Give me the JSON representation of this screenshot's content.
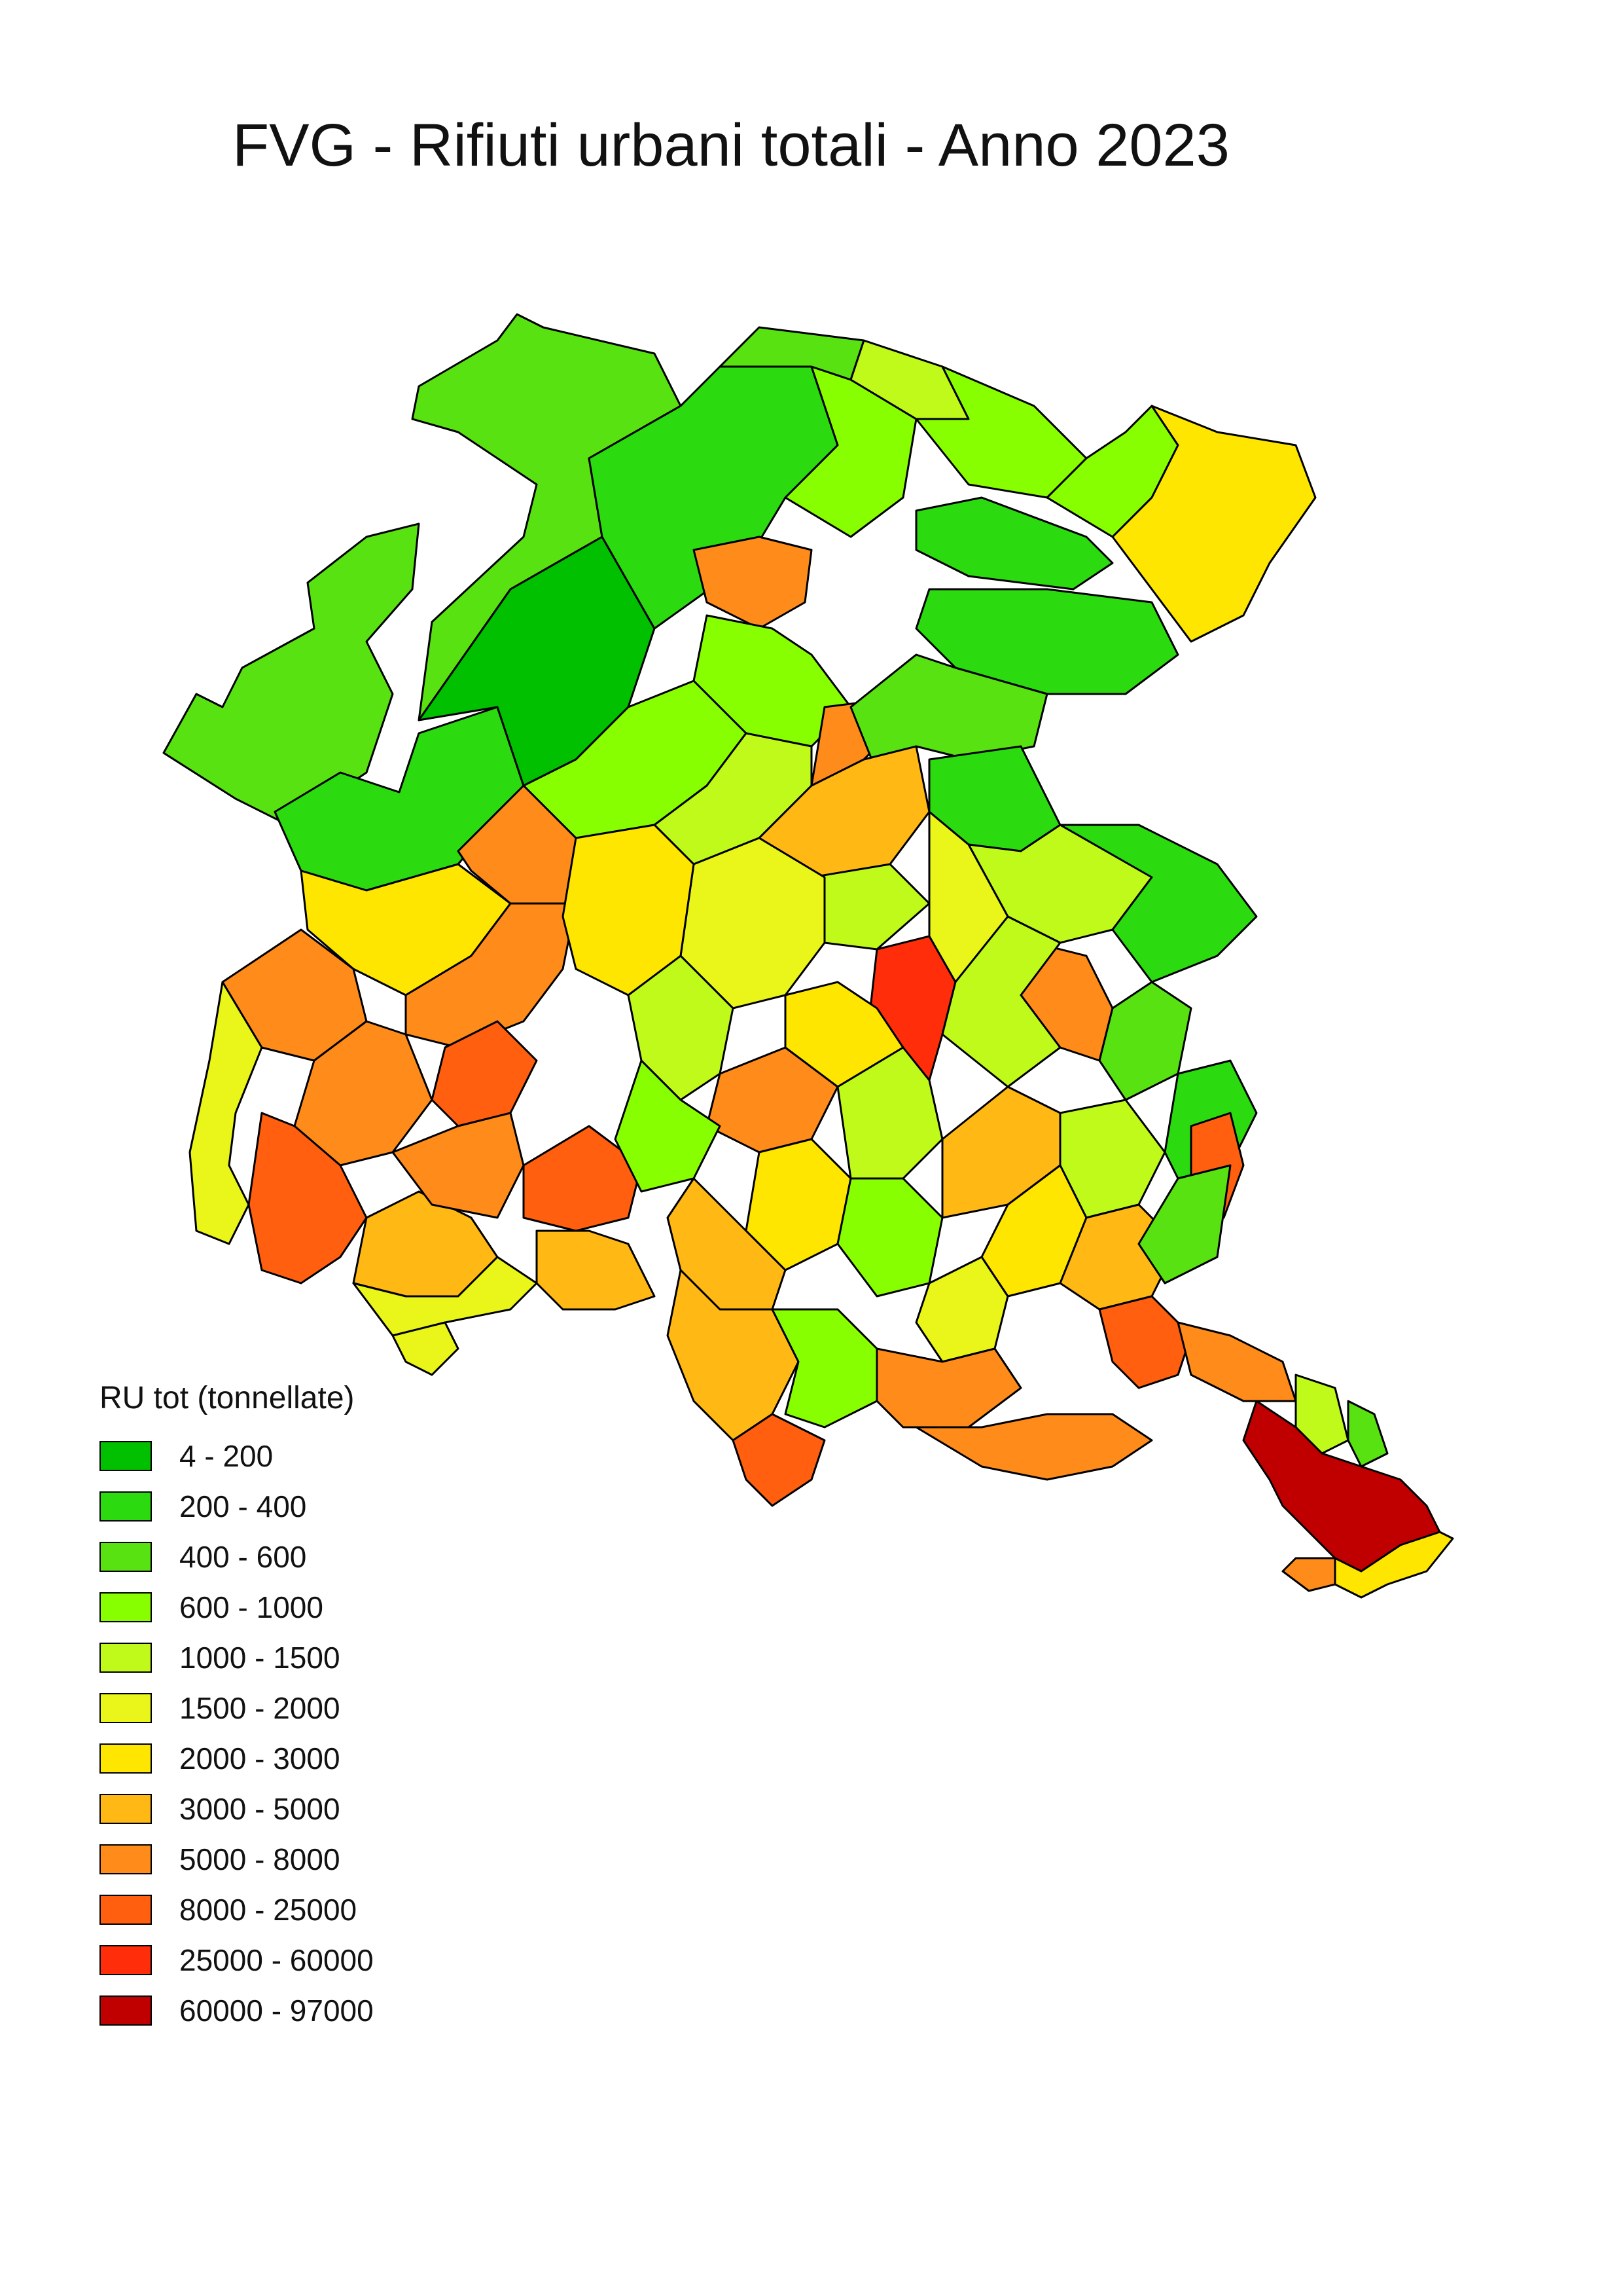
{
  "title": "FVG - Rifiuti urbani totali - Anno 2023",
  "legend": {
    "title": "RU tot (tonnellate)",
    "classes": [
      {
        "label": "4 - 200",
        "min": 4,
        "max": 200,
        "color": "#00c000"
      },
      {
        "label": "200 - 400",
        "min": 200,
        "max": 400,
        "color": "#2bdb0f"
      },
      {
        "label": "400 - 600",
        "min": 400,
        "max": 600,
        "color": "#58e212"
      },
      {
        "label": "600 - 1000",
        "min": 600,
        "max": 1000,
        "color": "#88ff00"
      },
      {
        "label": "1000 - 1500",
        "min": 1000,
        "max": 1500,
        "color": "#c0fa1a"
      },
      {
        "label": "1500 - 2000",
        "min": 1500,
        "max": 2000,
        "color": "#eaf51a"
      },
      {
        "label": "2000 - 3000",
        "min": 2000,
        "max": 3000,
        "color": "#ffe600"
      },
      {
        "label": "3000 - 5000",
        "min": 3000,
        "max": 5000,
        "color": "#ffb814"
      },
      {
        "label": "5000 - 8000",
        "min": 5000,
        "max": 8000,
        "color": "#ff8c1a"
      },
      {
        "label": "8000 - 25000",
        "min": 8000,
        "max": 25000,
        "color": "#ff5f0f"
      },
      {
        "label": "25000 - 60000",
        "min": 25000,
        "max": 60000,
        "color": "#ff2d0a"
      },
      {
        "label": "60000 - 97000",
        "min": 60000,
        "max": 97000,
        "color": "#c00000"
      }
    ]
  }
}
